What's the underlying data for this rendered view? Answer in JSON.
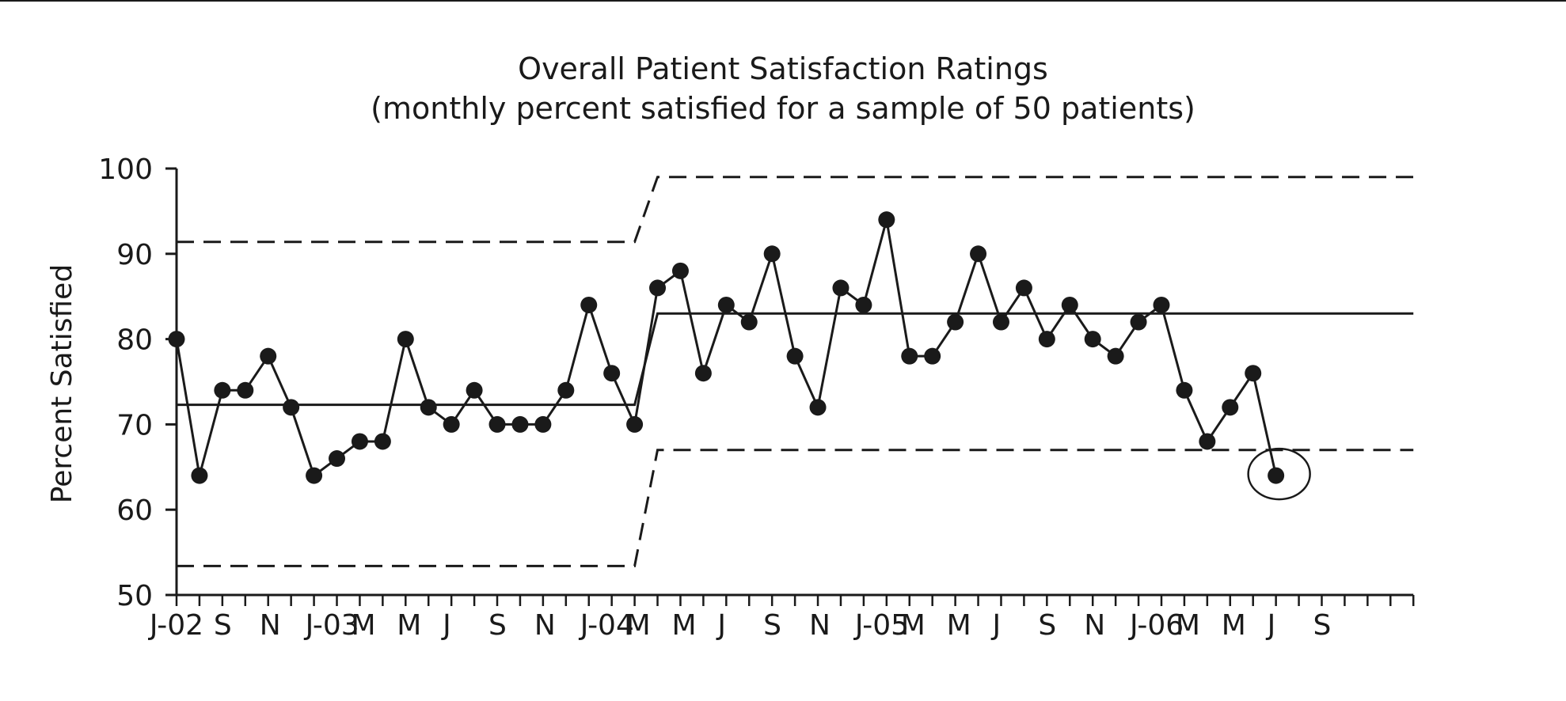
{
  "chart_data": {
    "type": "line",
    "title": "Overall Patient Satisfaction Ratings",
    "subtitle": "(monthly percent satisfied for a sample of 50 patients)",
    "ylabel": "Percent Satisfied",
    "xlabel": "",
    "ylim": [
      50,
      100
    ],
    "yticks": [
      50,
      60,
      70,
      80,
      90,
      100
    ],
    "x_months": [
      "Jul 2002",
      "Aug 2002",
      "Sep 2002",
      "Oct 2002",
      "Nov 2002",
      "Dec 2002",
      "Jan 2003",
      "Feb 2003",
      "Mar 2003",
      "Apr 2003",
      "May 2003",
      "Jun 2003",
      "Jul 2003",
      "Aug 2003",
      "Sep 2003",
      "Oct 2003",
      "Nov 2003",
      "Dec 2003",
      "Jan 2004",
      "Feb 2004",
      "Mar 2004",
      "Apr 2004",
      "May 2004",
      "Jun 2004",
      "Jul 2004",
      "Aug 2004",
      "Sep 2004",
      "Oct 2004",
      "Nov 2004",
      "Dec 2004",
      "Jan 2005",
      "Feb 2005",
      "Mar 2005",
      "Apr 2005",
      "May 2005",
      "Jun 2005",
      "Jul 2005",
      "Aug 2005",
      "Sep 2005",
      "Oct 2005",
      "Nov 2005",
      "Dec 2005",
      "Jan 2006",
      "Feb 2006",
      "Mar 2006",
      "Apr 2006",
      "May 2006",
      "Jun 2006",
      "Jul 2006",
      "Aug 2006",
      "Sep 2006",
      "Oct 2006",
      "Nov 2006",
      "Dec 2006",
      "Jan 2007"
    ],
    "x_tick_labels": [
      "J-02",
      "",
      "S",
      "",
      "N",
      "",
      "J-03",
      "",
      "M",
      "",
      "M",
      "",
      "J",
      "",
      "S",
      "",
      "N",
      "",
      "J-04",
      "",
      "M",
      "",
      "M",
      "",
      "J",
      "",
      "S",
      "",
      "N",
      "",
      "J-05",
      "",
      "M",
      "",
      "M",
      "",
      "J",
      "",
      "S",
      "",
      "N",
      "",
      "J-06",
      "",
      "M",
      "",
      "M",
      "",
      "J",
      "",
      "S",
      "",
      "",
      "",
      ""
    ],
    "series": [
      {
        "values": [
          80,
          64,
          74,
          74,
          78,
          72,
          64,
          66,
          68,
          68,
          80,
          72,
          70,
          74,
          70,
          70,
          70,
          74,
          84,
          76,
          70,
          86,
          88,
          76,
          84,
          82,
          90,
          78,
          72,
          86,
          84,
          94,
          78,
          78,
          82,
          90,
          82,
          86,
          80,
          84,
          80,
          78,
          82,
          84,
          74,
          68,
          72,
          76,
          64
        ]
      }
    ],
    "center_line": [
      {
        "from": "Jul 2002",
        "to": "Mar 2004",
        "value": 72.3
      },
      {
        "from": "Apr 2004",
        "to": "Jan 2007",
        "value": 83
      }
    ],
    "upper_control_limit": [
      {
        "from": "Jul 2002",
        "to": "Mar 2004",
        "value": 91.4
      },
      {
        "from": "Apr 2004",
        "to": "Jan 2007",
        "value": 99
      }
    ],
    "lower_control_limit": [
      {
        "from": "Jul 2002",
        "to": "Mar 2004",
        "value": 53.4
      },
      {
        "from": "Apr 2004",
        "to": "Jan 2007",
        "value": 67
      }
    ],
    "highlighted_point": {
      "month": "Jul 2006",
      "value": 64
    },
    "grid": false,
    "legend": "none",
    "colors": {
      "line": "#1a1a1a",
      "marker": "#1a1a1a",
      "background": "#ffffff"
    }
  }
}
